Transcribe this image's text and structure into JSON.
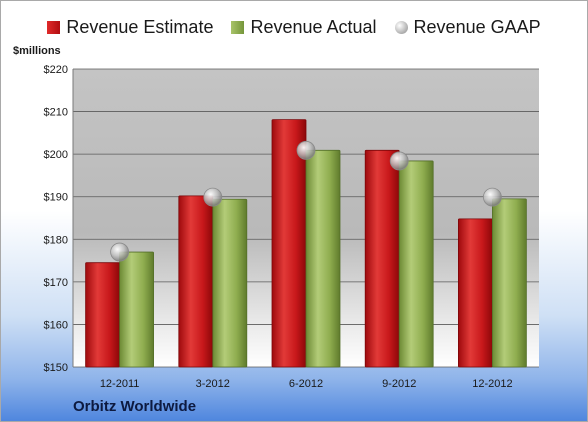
{
  "unit_label": "$millions",
  "company": "Orbitz Worldwide",
  "colors": {
    "estimate": "#c8181b",
    "actual": "#8fad4f",
    "gaap": "#b0b0b0",
    "plot_bg": "#c8c8c8"
  },
  "chart_data": {
    "type": "bar",
    "categories": [
      "12-2011",
      "3-2012",
      "6-2012",
      "9-2012",
      "12-2012"
    ],
    "series": [
      {
        "name": "Revenue Estimate",
        "kind": "bar",
        "values": [
          174.5,
          190.2,
          208.1,
          200.9,
          184.8
        ]
      },
      {
        "name": "Revenue Actual",
        "kind": "bar",
        "values": [
          177.0,
          189.4,
          200.9,
          198.4,
          189.5
        ]
      },
      {
        "name": "Revenue GAAP",
        "kind": "marker",
        "values": [
          177.0,
          189.9,
          200.9,
          198.4,
          189.9
        ]
      }
    ],
    "ylim": [
      150,
      220
    ],
    "yticks": [
      150,
      160,
      170,
      180,
      190,
      200,
      210,
      220
    ],
    "ytick_labels": [
      "$150",
      "$160",
      "$170",
      "$180",
      "$190",
      "$200",
      "$210",
      "$220"
    ],
    "ylabel": "$millions",
    "grid": true,
    "legend": "top"
  }
}
